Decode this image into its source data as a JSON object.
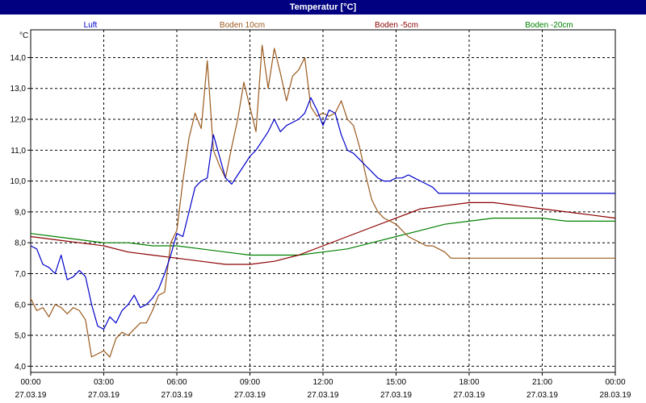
{
  "window": {
    "title": "Temperatur [°C]"
  },
  "colors": {
    "Luft": "#0000cc",
    "Boden 10cm": "#9a5a1e",
    "Boden -5cm": "#8b0000",
    "Boden -20cm": "#008000"
  },
  "chart_data": {
    "type": "line",
    "title": "Temperatur [°C]",
    "ylabel": "°C",
    "ylim": [
      3.8,
      14.9
    ],
    "xlim": [
      "27.03.19 00:00",
      "28.03.19 00:00"
    ],
    "yticks": [
      "4,0",
      "5,0",
      "6,0",
      "7,0",
      "8,0",
      "9,0",
      "10,0",
      "11,0",
      "12,0",
      "13,0",
      "14,0"
    ],
    "xticks": [
      {
        "time": "00:00",
        "date": "27.03.19"
      },
      {
        "time": "03:00",
        "date": "27.03.19"
      },
      {
        "time": "06:00",
        "date": "27.03.19"
      },
      {
        "time": "09:00",
        "date": "27.03.19"
      },
      {
        "time": "12:00",
        "date": "27.03.19"
      },
      {
        "time": "15:00",
        "date": "27.03.19"
      },
      {
        "time": "18:00",
        "date": "27.03.19"
      },
      {
        "time": "21:00",
        "date": "27.03.19"
      },
      {
        "time": "00:00",
        "date": "28.03.19"
      }
    ],
    "grid": true,
    "legend_position": "top",
    "x_unit": "hours",
    "series": [
      {
        "name": "Luft",
        "x": [
          0,
          0.25,
          0.5,
          0.75,
          1,
          1.25,
          1.5,
          1.75,
          2,
          2.25,
          2.5,
          2.75,
          3,
          3.25,
          3.5,
          3.75,
          4,
          4.25,
          4.5,
          4.75,
          5,
          5.25,
          5.5,
          5.75,
          6,
          6.25,
          6.5,
          6.75,
          7,
          7.25,
          7.5,
          7.75,
          8,
          8.25,
          8.5,
          8.75,
          9,
          9.25,
          9.5,
          9.75,
          10,
          10.25,
          10.5,
          10.75,
          11,
          11.25,
          11.5,
          11.75,
          12,
          12.25,
          12.5,
          12.75,
          13,
          13.25,
          13.5,
          13.75,
          14,
          14.25,
          14.5,
          14.75,
          15,
          15.25,
          15.5,
          15.75,
          16,
          16.25,
          16.5,
          16.75,
          17,
          17.25,
          17.5,
          17.75,
          18,
          18.25,
          18.5,
          18.75,
          19,
          19.25,
          19.5,
          19.75,
          20,
          20.25,
          20.5,
          20.75,
          21,
          21.25,
          21.5,
          21.75,
          22,
          22.25,
          22.5,
          22.75,
          23,
          23.25,
          23.5,
          23.75,
          24
        ],
        "values": [
          7.9,
          7.8,
          7.3,
          7.2,
          7.0,
          7.6,
          6.8,
          6.9,
          7.1,
          6.9,
          6.0,
          5.3,
          5.2,
          5.6,
          5.4,
          5.8,
          6.0,
          6.3,
          5.9,
          6.0,
          6.2,
          6.5,
          7.0,
          7.6,
          8.3,
          8.2,
          9.0,
          9.8,
          10.0,
          10.1,
          11.5,
          10.8,
          10.1,
          9.9,
          10.2,
          10.5,
          10.8,
          11.0,
          11.3,
          11.6,
          12.0,
          11.6,
          11.8,
          11.9,
          12.0,
          12.2,
          12.7,
          12.3,
          11.8,
          12.3,
          12.2,
          11.5,
          11.0,
          10.9,
          10.7,
          10.5,
          10.3,
          10.1,
          10.0,
          10.0,
          10.1,
          10.1,
          10.2,
          10.1,
          10.0,
          9.9,
          9.8,
          9.6,
          9.6,
          9.6,
          9.6,
          9.6,
          9.6,
          9.6,
          9.6,
          9.6,
          9.6,
          9.6,
          9.6,
          9.6,
          9.6,
          9.6,
          9.6,
          9.6,
          9.6,
          9.6,
          9.6,
          9.6,
          9.6,
          9.6,
          9.6,
          9.6,
          9.6,
          9.6,
          9.6,
          9.6,
          9.6
        ]
      },
      {
        "name": "Boden 10cm",
        "x": [
          0,
          0.25,
          0.5,
          0.75,
          1,
          1.25,
          1.5,
          1.75,
          2,
          2.25,
          2.5,
          2.75,
          3,
          3.25,
          3.5,
          3.75,
          4,
          4.25,
          4.5,
          4.75,
          5,
          5.25,
          5.5,
          5.75,
          6,
          6.25,
          6.5,
          6.75,
          7,
          7.25,
          7.5,
          7.75,
          8,
          8.25,
          8.5,
          8.75,
          9,
          9.25,
          9.5,
          9.75,
          10,
          10.25,
          10.5,
          10.75,
          11,
          11.25,
          11.5,
          11.75,
          12,
          12.25,
          12.5,
          12.75,
          13,
          13.25,
          13.5,
          13.75,
          14,
          14.25,
          14.5,
          14.75,
          15,
          15.25,
          15.5,
          15.75,
          16,
          16.25,
          16.5,
          16.75,
          17,
          17.25,
          17.5,
          17.75,
          18,
          18.25,
          18.5,
          18.75,
          19,
          19.25,
          19.5,
          19.75,
          20,
          20.25,
          20.5,
          20.75,
          21,
          21.25,
          21.5,
          21.75,
          22,
          22.25,
          22.5,
          22.75,
          23,
          23.25,
          23.5,
          23.75,
          24
        ],
        "values": [
          6.2,
          5.8,
          5.9,
          5.6,
          6.0,
          5.9,
          5.7,
          5.9,
          5.8,
          5.5,
          4.3,
          4.4,
          4.5,
          4.3,
          4.9,
          5.1,
          5.0,
          5.2,
          5.4,
          5.4,
          5.8,
          6.3,
          6.4,
          8.0,
          8.4,
          10.0,
          11.4,
          12.2,
          11.7,
          13.9,
          11.0,
          10.5,
          10.1,
          11.1,
          12.0,
          13.2,
          12.4,
          11.6,
          14.4,
          13.0,
          14.3,
          13.5,
          12.6,
          13.4,
          13.6,
          14.0,
          12.4,
          12.1,
          12.2,
          12.1,
          12.2,
          12.6,
          12.0,
          11.8,
          11.1,
          10.2,
          9.4,
          9.0,
          8.8,
          8.7,
          8.6,
          8.4,
          8.2,
          8.1,
          8.0,
          7.9,
          7.9,
          7.8,
          7.7,
          7.5,
          7.5,
          7.5,
          7.5,
          7.5,
          7.5,
          7.5,
          7.5,
          7.5,
          7.5,
          7.5,
          7.5,
          7.5,
          7.5,
          7.5,
          7.5,
          7.5,
          7.5,
          7.5,
          7.5,
          7.5,
          7.5,
          7.5,
          7.5,
          7.5,
          7.5,
          7.5,
          7.5
        ]
      },
      {
        "name": "Boden -5cm",
        "x": [
          0,
          1,
          2,
          3,
          4,
          5,
          6,
          7,
          8,
          9,
          10,
          11,
          12,
          13,
          14,
          15,
          16,
          17,
          18,
          19,
          20,
          21,
          22,
          23,
          24
        ],
        "values": [
          8.2,
          8.1,
          8.0,
          7.9,
          7.7,
          7.6,
          7.5,
          7.4,
          7.3,
          7.3,
          7.4,
          7.6,
          7.9,
          8.2,
          8.5,
          8.8,
          9.1,
          9.2,
          9.3,
          9.3,
          9.2,
          9.1,
          9.0,
          8.9,
          8.8
        ]
      },
      {
        "name": "Boden -20cm",
        "x": [
          0,
          1,
          2,
          3,
          4,
          5,
          6,
          7,
          8,
          9,
          10,
          11,
          12,
          13,
          14,
          15,
          16,
          17,
          18,
          19,
          20,
          21,
          22,
          23,
          24
        ],
        "values": [
          8.3,
          8.2,
          8.1,
          8.0,
          8.0,
          7.9,
          7.9,
          7.8,
          7.7,
          7.6,
          7.6,
          7.6,
          7.7,
          7.8,
          8.0,
          8.2,
          8.4,
          8.6,
          8.7,
          8.8,
          8.8,
          8.8,
          8.7,
          8.7,
          8.7
        ]
      }
    ]
  }
}
